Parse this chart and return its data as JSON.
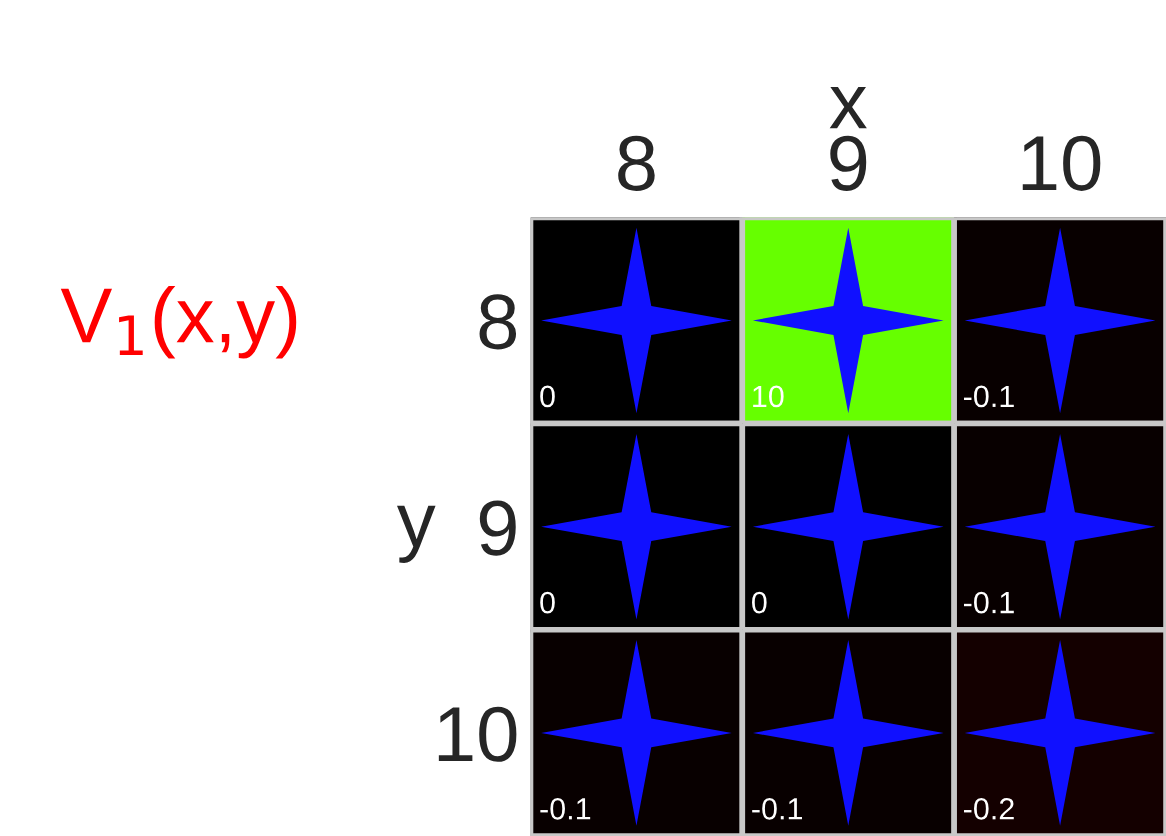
{
  "chart_data": {
    "type": "heatmap",
    "title": "V$_{1}$(x,y)",
    "xlabel": "x",
    "ylabel": "y",
    "categories": [
      "8",
      "9",
      "10"
    ],
    "y_categories": [
      "8",
      "9",
      "10"
    ],
    "cells": [
      [
        0,
        10,
        -0.1
      ],
      [
        0,
        0,
        -0.1
      ],
      [
        -0.1,
        -0.1,
        -0.2
      ]
    ],
    "colors": [
      [
        "#000000",
        "#66ff00",
        "#080000"
      ],
      [
        "#000000",
        "#000000",
        "#080000"
      ],
      [
        "#080000",
        "#080000",
        "#140000"
      ]
    ],
    "data_labels": true
  }
}
